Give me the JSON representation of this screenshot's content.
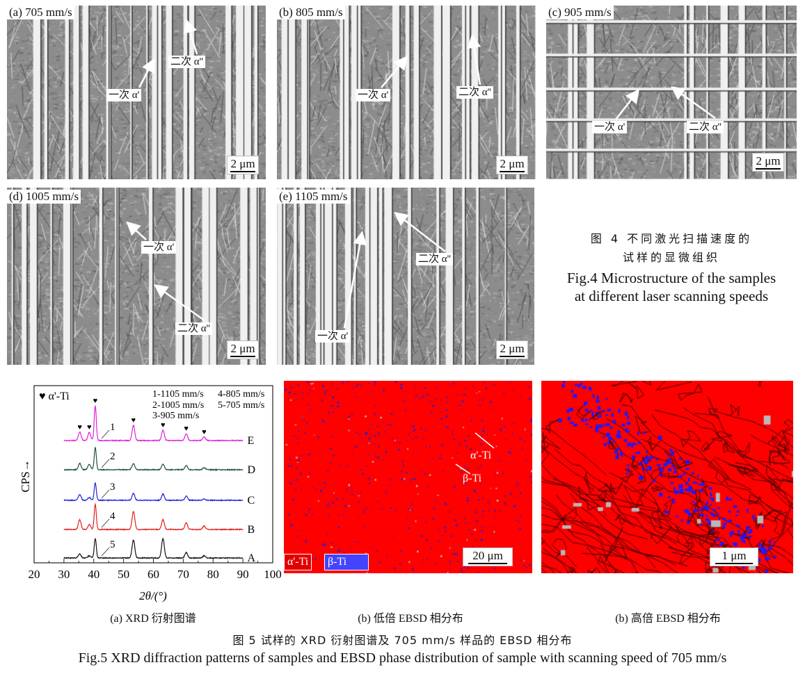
{
  "figure4": {
    "panels": [
      {
        "label": "(a) 705 mm/s",
        "scale": "2 μm",
        "primary": "一次 α'",
        "secondary": "二次 α''"
      },
      {
        "label": "(b) 805 mm/s",
        "scale": "2 μm",
        "primary": "一次 α'",
        "secondary": "二次 α''"
      },
      {
        "label": "(c) 905 mm/s",
        "scale": "2 μm",
        "primary": "一次 α'",
        "secondary": "二次 α''"
      },
      {
        "label": "(d) 1005 mm/s",
        "scale": "2 μm",
        "primary": "一次 α'",
        "secondary": "二次 α''"
      },
      {
        "label": "(e) 1105 mm/s",
        "scale": "2 μm",
        "primary": "一次 α'",
        "secondary": "二次 α''"
      }
    ],
    "caption_cn_line1": "图 4  不同激光扫描速度的",
    "caption_cn_line2": "试样的显微组织",
    "caption_en_line1": "Fig.4  Microstructure of the samples",
    "caption_en_line2": "at different laser scanning speeds"
  },
  "chart_data": {
    "type": "line",
    "xlabel": "2θ/(°)",
    "ylabel": "CPS→",
    "xlim": [
      20,
      100
    ],
    "xticks": [
      20,
      30,
      40,
      50,
      60,
      70,
      80,
      90,
      100
    ],
    "marker_legend": "♥ α'-Ti",
    "marked_peaks": [
      35.3,
      38.5,
      40.5,
      53.3,
      63.2,
      71.0,
      77.0
    ],
    "speed_legend": [
      "1-1105 mm/s",
      "2-1005 mm/s",
      "3-905 mm/s",
      "4-805 mm/s",
      "5-705 mm/s"
    ],
    "peak_positions": [
      35.3,
      38.5,
      40.5,
      53.3,
      63.2,
      71.0,
      77.0
    ],
    "series": [
      {
        "name": "E",
        "number": "1",
        "color": "#e020e0",
        "peak_intensities": [
          12,
          12,
          50,
          22,
          15,
          10,
          5
        ]
      },
      {
        "name": "D",
        "number": "2",
        "color": "#1f4f3f",
        "peak_intensities": [
          9,
          8,
          32,
          9,
          8,
          6,
          3
        ]
      },
      {
        "name": "C",
        "number": "3",
        "color": "#2020e0",
        "peak_intensities": [
          8,
          4,
          25,
          10,
          9,
          6,
          2
        ]
      },
      {
        "name": "B",
        "number": "4",
        "color": "#e02020",
        "peak_intensities": [
          14,
          7,
          36,
          26,
          14,
          10,
          5
        ]
      },
      {
        "name": "A",
        "number": "5",
        "color": "#111111",
        "peak_intensities": [
          6,
          3,
          28,
          26,
          28,
          8,
          3
        ]
      }
    ]
  },
  "ebsd_low": {
    "alpha_label": "α'-Ti",
    "beta_label": "β-Ti",
    "legend_alpha": "α'-Ti",
    "legend_beta": "β-Ti",
    "scale": "20 μm",
    "alpha_color": "#ff0000",
    "beta_color": "#3333ff"
  },
  "ebsd_high": {
    "scale": "1 μm"
  },
  "figure5": {
    "sub_a": "(a) XRD 衍射图谱",
    "sub_b": "(b) 低倍 EBSD 相分布",
    "sub_c": "(b) 高倍 EBSD 相分布",
    "caption_cn": "图 5  试样的 XRD 衍射图谱及 705 mm/s 样品的 EBSD 相分布",
    "caption_en": "Fig.5  XRD diffraction patterns of samples and EBSD phase distribution of sample with scanning speed of 705 mm/s"
  }
}
